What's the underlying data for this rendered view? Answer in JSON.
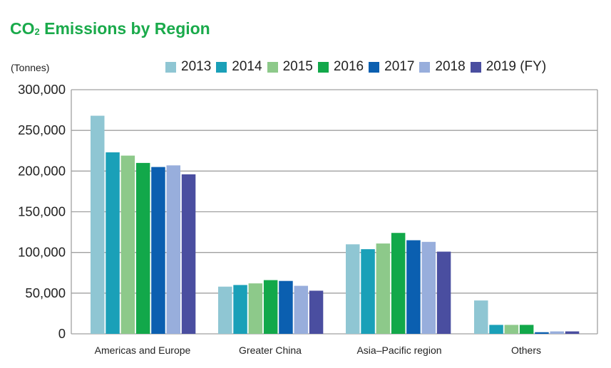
{
  "chart_data": {
    "type": "bar",
    "title_main": "CO",
    "title_sub": "2",
    "title_rest": " Emissions by Region",
    "ylabel": "(Tonnes)",
    "xlabel": "",
    "ylim": [
      0,
      300000
    ],
    "yticks": [
      0,
      50000,
      100000,
      150000,
      200000,
      250000,
      300000
    ],
    "ytick_labels": [
      "0",
      "50,000",
      "100,000",
      "150,000",
      "200,000",
      "250,000",
      "300,000"
    ],
    "grid": true,
    "legend_position": "top",
    "categories": [
      "Americas and Europe",
      "Greater China",
      "Asia–Pacific region",
      "Others"
    ],
    "series": [
      {
        "name": "2013",
        "color": "#8fc6d3",
        "values": [
          268000,
          58000,
          110000,
          41000
        ]
      },
      {
        "name": "2014",
        "color": "#1aa0b8",
        "values": [
          223000,
          60000,
          104000,
          11000
        ]
      },
      {
        "name": "2015",
        "color": "#8dc98a",
        "values": [
          219000,
          62000,
          111000,
          11000
        ]
      },
      {
        "name": "2016",
        "color": "#12a84a",
        "values": [
          210000,
          66000,
          124000,
          11000
        ]
      },
      {
        "name": "2017",
        "color": "#0b5fb0",
        "values": [
          205000,
          65000,
          115000,
          2000
        ]
      },
      {
        "name": "2018",
        "color": "#98aedc",
        "values": [
          207000,
          59000,
          113000,
          3000
        ]
      },
      {
        "name": "2019 (FY)",
        "color": "#4a4ea0",
        "values": [
          196000,
          53000,
          101000,
          3000
        ]
      }
    ]
  }
}
